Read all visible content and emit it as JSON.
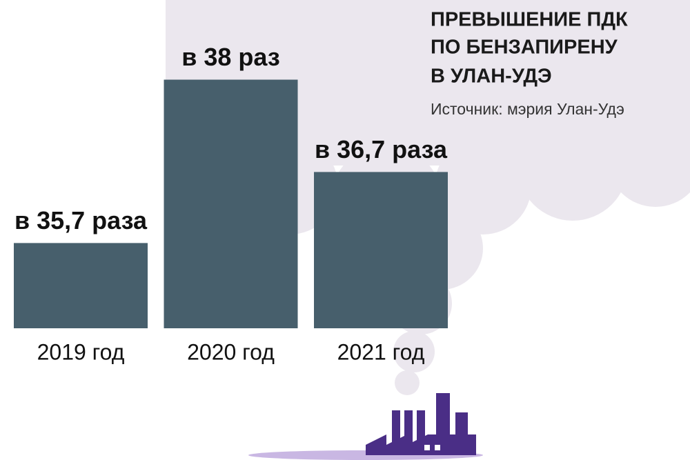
{
  "chart_data": {
    "type": "bar",
    "title": [
      "ПРЕВЫШЕНИЕ ПДК",
      "ПО БЕНЗАПИРЕНУ",
      "В УЛАН-УДЭ"
    ],
    "subtitle": "Источник: мэрия Улан-Удэ",
    "categories": [
      "2019 год",
      "2020 год",
      "2021 год"
    ],
    "values": [
      35.7,
      38,
      36.7
    ],
    "value_labels": [
      "в 35,7 раза",
      "в 38 раз",
      "в 36,7 раза"
    ],
    "color": "#475f6c",
    "ylim": [
      34.5,
      38.5
    ]
  }
}
